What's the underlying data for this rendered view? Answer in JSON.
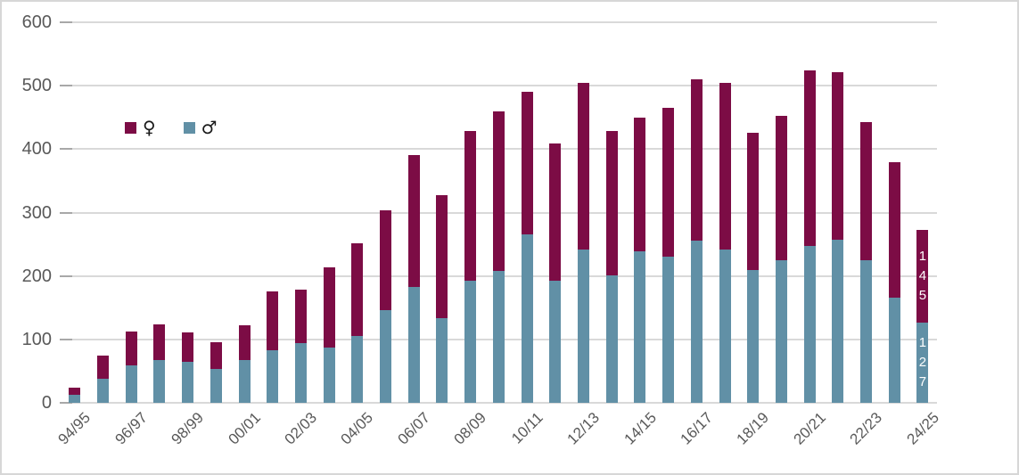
{
  "chart_data": {
    "type": "bar",
    "stacked": true,
    "bar_count": 31,
    "ylim": [
      0,
      600
    ],
    "grid": "horizontal",
    "legend_position": "inside-top-left",
    "y_tick_labels": [
      "0",
      "100",
      "200",
      "300",
      "400",
      "500",
      "600"
    ],
    "x_tick_labels": [
      "94/95",
      "96/97",
      "98/99",
      "00/01",
      "02/03",
      "04/05",
      "06/07",
      "08/09",
      "10/11",
      "12/13",
      "14/15",
      "16/17",
      "18/19",
      "20/21",
      "22/23",
      "24/25"
    ],
    "x_tick_positions": [
      0,
      2,
      4,
      6,
      8,
      10,
      12,
      14,
      16,
      18,
      20,
      22,
      24,
      26,
      28,
      30
    ],
    "series": [
      {
        "name": "female",
        "label": "♀",
        "color": "#7c0c45",
        "stack_position": "top",
        "values": [
          12,
          36,
          53,
          55,
          47,
          43,
          54,
          92,
          84,
          126,
          145,
          158,
          207,
          195,
          235,
          252,
          225,
          216,
          263,
          228,
          211,
          234,
          254,
          263,
          216,
          227,
          277,
          265,
          218,
          214,
          145
        ]
      },
      {
        "name": "male",
        "label": "♂",
        "color": "#6190a6",
        "stack_position": "bottom",
        "values": [
          12,
          38,
          59,
          68,
          64,
          53,
          68,
          83,
          94,
          87,
          106,
          146,
          183,
          133,
          193,
          208,
          266,
          193,
          242,
          201,
          239,
          231,
          256,
          242,
          210,
          225,
          247,
          257,
          225,
          166,
          127
        ]
      }
    ],
    "data_labels": {
      "bar_index": 30,
      "female": "145",
      "male": "127",
      "text_color": "#ffffff"
    }
  },
  "colors": {
    "female": "#7c0c45",
    "male": "#6190a6",
    "gridline": "#d9d9d9",
    "axis_tick": "#a8a8a8",
    "axis_text": "#595959",
    "frame_border": "#d7d7d7",
    "background": "#ffffff"
  }
}
